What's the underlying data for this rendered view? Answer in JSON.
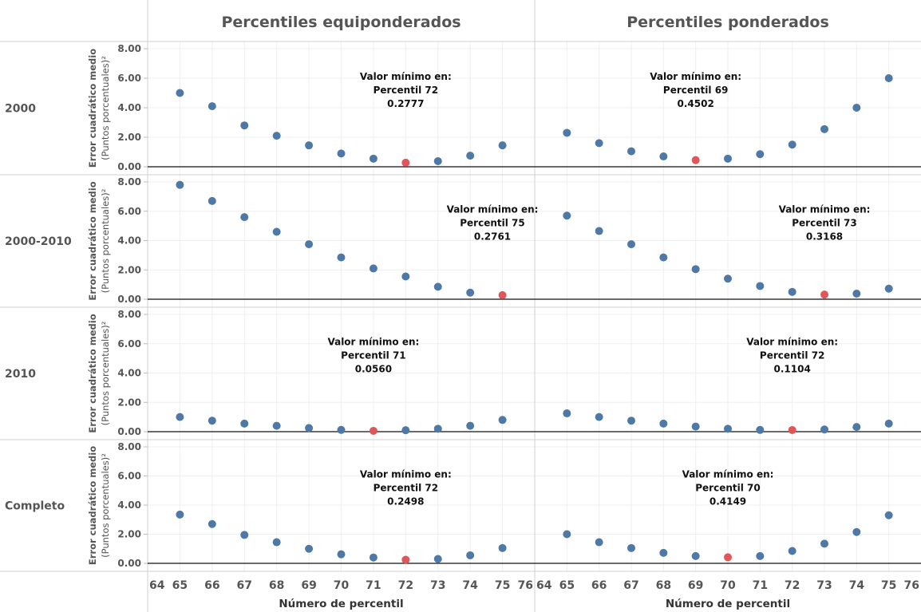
{
  "chart_data": {
    "type": "scatter",
    "columns": [
      "Percentiles equiponderados",
      "Percentiles ponderados"
    ],
    "rows": [
      "2000",
      "2000-2010",
      "2010",
      "Completo"
    ],
    "x": [
      65,
      66,
      67,
      68,
      69,
      70,
      71,
      72,
      73,
      74,
      75
    ],
    "xlim": [
      64,
      76
    ],
    "x_ticks": [
      "64",
      "65",
      "66",
      "67",
      "68",
      "69",
      "70",
      "71",
      "72",
      "73",
      "74",
      "75",
      "76"
    ],
    "xlabel": "Número de percentil",
    "ylabel": "Error cuadrático medio",
    "ylabel_unit": "(Puntos porcentuales)²",
    "ylim": [
      0,
      8
    ],
    "y_ticks": [
      "0.00",
      "2.00",
      "4.00",
      "6.00",
      "8.00"
    ],
    "colors": {
      "point": "#4e79a7",
      "minimum": "#e15759",
      "title": "#555555"
    },
    "panels": [
      {
        "row": "2000",
        "column": "Percentiles equiponderados",
        "values": [
          5.0,
          4.1,
          2.8,
          2.1,
          1.45,
          0.9,
          0.55,
          0.2777,
          0.38,
          0.75,
          1.45
        ],
        "min_x": 72,
        "annotation": [
          "Valor mínimo en:",
          "Percentil 72",
          "0.2777"
        ]
      },
      {
        "row": "2000",
        "column": "Percentiles ponderados",
        "values": [
          2.3,
          1.6,
          1.05,
          0.7,
          0.4502,
          0.55,
          0.85,
          1.5,
          2.55,
          4.0,
          6.0
        ],
        "min_x": 69,
        "annotation": [
          "Valor mínimo en:",
          "Percentil 69",
          "0.4502"
        ]
      },
      {
        "row": "2000-2010",
        "column": "Percentiles equiponderados",
        "values": [
          7.8,
          6.7,
          5.6,
          4.6,
          3.75,
          2.85,
          2.1,
          1.55,
          0.85,
          0.45,
          0.2761
        ],
        "min_x": 75,
        "annotation": [
          "Valor mínimo en:",
          "Percentil 75",
          "0.2761"
        ]
      },
      {
        "row": "2000-2010",
        "column": "Percentiles ponderados",
        "values": [
          5.7,
          4.65,
          3.75,
          2.85,
          2.05,
          1.4,
          0.9,
          0.5,
          0.3168,
          0.38,
          0.72
        ],
        "min_x": 73,
        "annotation": [
          "Valor mínimo en:",
          "Percentil 73",
          "0.3168"
        ]
      },
      {
        "row": "2010",
        "column": "Percentiles equiponderados",
        "values": [
          1.0,
          0.75,
          0.55,
          0.4,
          0.25,
          0.12,
          0.056,
          0.1,
          0.2,
          0.4,
          0.8
        ],
        "min_x": 71,
        "annotation": [
          "Valor mínimo en:",
          "Percentil 71",
          "0.0560"
        ]
      },
      {
        "row": "2010",
        "column": "Percentiles ponderados",
        "values": [
          1.25,
          1.0,
          0.75,
          0.55,
          0.35,
          0.2,
          0.12,
          0.1104,
          0.15,
          0.32,
          0.55
        ],
        "min_x": 72,
        "annotation": [
          "Valor mínimo en:",
          "Percentil 72",
          "0.1104"
        ]
      },
      {
        "row": "Completo",
        "column": "Percentiles equiponderados",
        "values": [
          3.35,
          2.7,
          1.95,
          1.45,
          1.0,
          0.62,
          0.4,
          0.2498,
          0.3,
          0.55,
          1.05
        ],
        "min_x": 72,
        "annotation": [
          "Valor mínimo en:",
          "Percentil 72",
          "0.2498"
        ]
      },
      {
        "row": "Completo",
        "column": "Percentiles ponderados",
        "values": [
          2.0,
          1.45,
          1.05,
          0.72,
          0.5,
          0.4149,
          0.5,
          0.85,
          1.35,
          2.15,
          3.3
        ],
        "min_x": 70,
        "annotation": [
          "Valor mínimo en:",
          "Percentil 70",
          "0.4149"
        ]
      }
    ]
  }
}
